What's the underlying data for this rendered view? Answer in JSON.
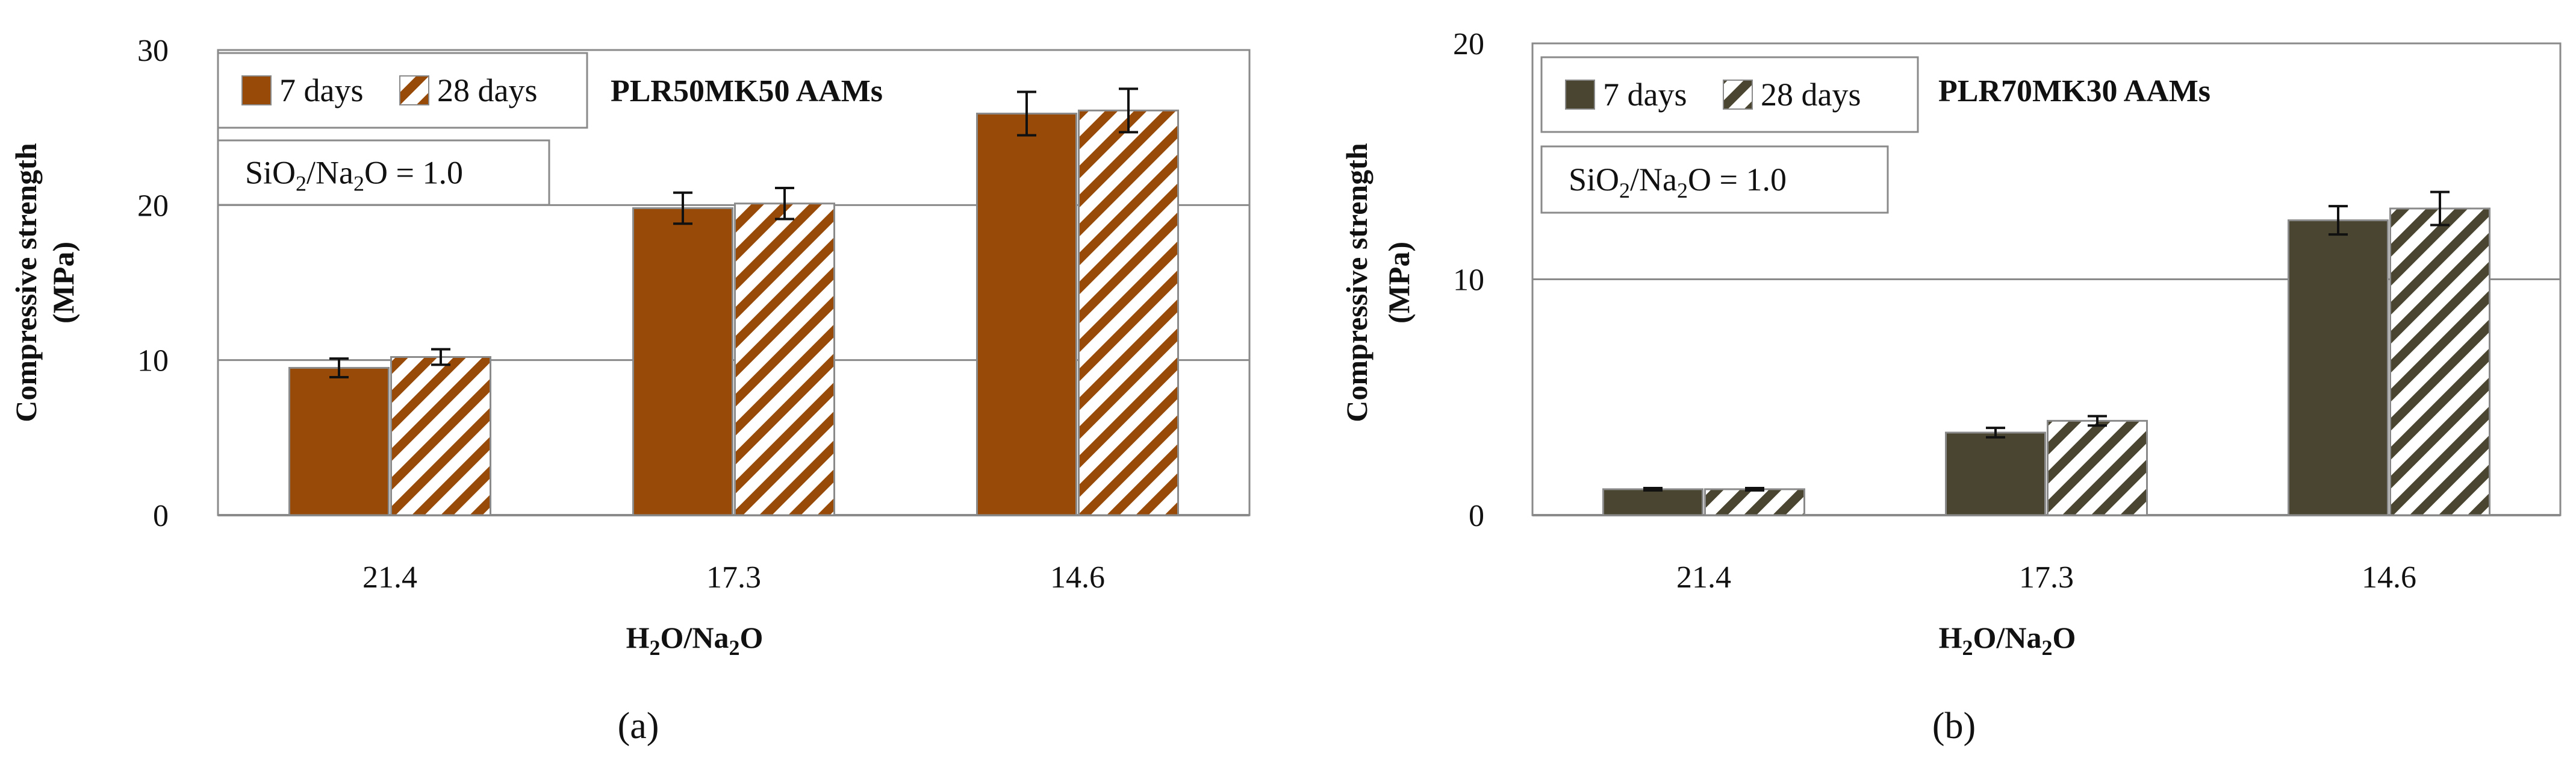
{
  "chart_data": [
    {
      "type": "bar",
      "panel_label": "(a)",
      "title": "PLR50MK50 AAMs",
      "annotation": {
        "text": "SiO",
        "sub1": "2",
        "mid": "/Na",
        "sub2": "2",
        "tail": "O = 1.0"
      },
      "xlabel": {
        "text": "H",
        "sub1": "2",
        "mid": "O/Na",
        "sub2": "2",
        "tail": "O"
      },
      "ylabel": {
        "line1": "Compressive strength",
        "line2": "(MPa)"
      },
      "ylim": [
        0,
        30
      ],
      "yticks": [
        0,
        10,
        20,
        30
      ],
      "categories": [
        "21.4",
        "17.3",
        "14.6"
      ],
      "series": [
        {
          "name": "7 days",
          "values": [
            9.5,
            19.8,
            25.9
          ],
          "errors": [
            0.6,
            1.0,
            1.4
          ],
          "color": "#984a08",
          "pattern": "solid"
        },
        {
          "name": "28 days",
          "values": [
            10.2,
            20.1,
            26.1
          ],
          "errors": [
            0.5,
            1.0,
            1.4
          ],
          "color": "#984a08",
          "pattern": "hatch"
        }
      ]
    },
    {
      "type": "bar",
      "panel_label": "(b)",
      "title": "PLR70MK30 AAMs",
      "annotation": {
        "text": "SiO",
        "sub1": "2",
        "mid": "/Na",
        "sub2": "2",
        "tail": "O = 1.0"
      },
      "xlabel": {
        "text": "H",
        "sub1": "2",
        "mid": "O/Na",
        "sub2": "2",
        "tail": "O"
      },
      "ylabel": {
        "line1": "Compressive strength",
        "line2": "(MPa)"
      },
      "ylim": [
        0,
        20
      ],
      "yticks": [
        0,
        10,
        20
      ],
      "categories": [
        "21.4",
        "17.3",
        "14.6"
      ],
      "series": [
        {
          "name": "7 days",
          "values": [
            1.1,
            3.5,
            12.5
          ],
          "errors": [
            0.05,
            0.2,
            0.6
          ],
          "color": "#4a4530",
          "pattern": "solid"
        },
        {
          "name": "28 days",
          "values": [
            1.1,
            4.0,
            13.0
          ],
          "errors": [
            0.05,
            0.2,
            0.7
          ],
          "color": "#4a4530",
          "pattern": "hatch"
        }
      ]
    }
  ]
}
